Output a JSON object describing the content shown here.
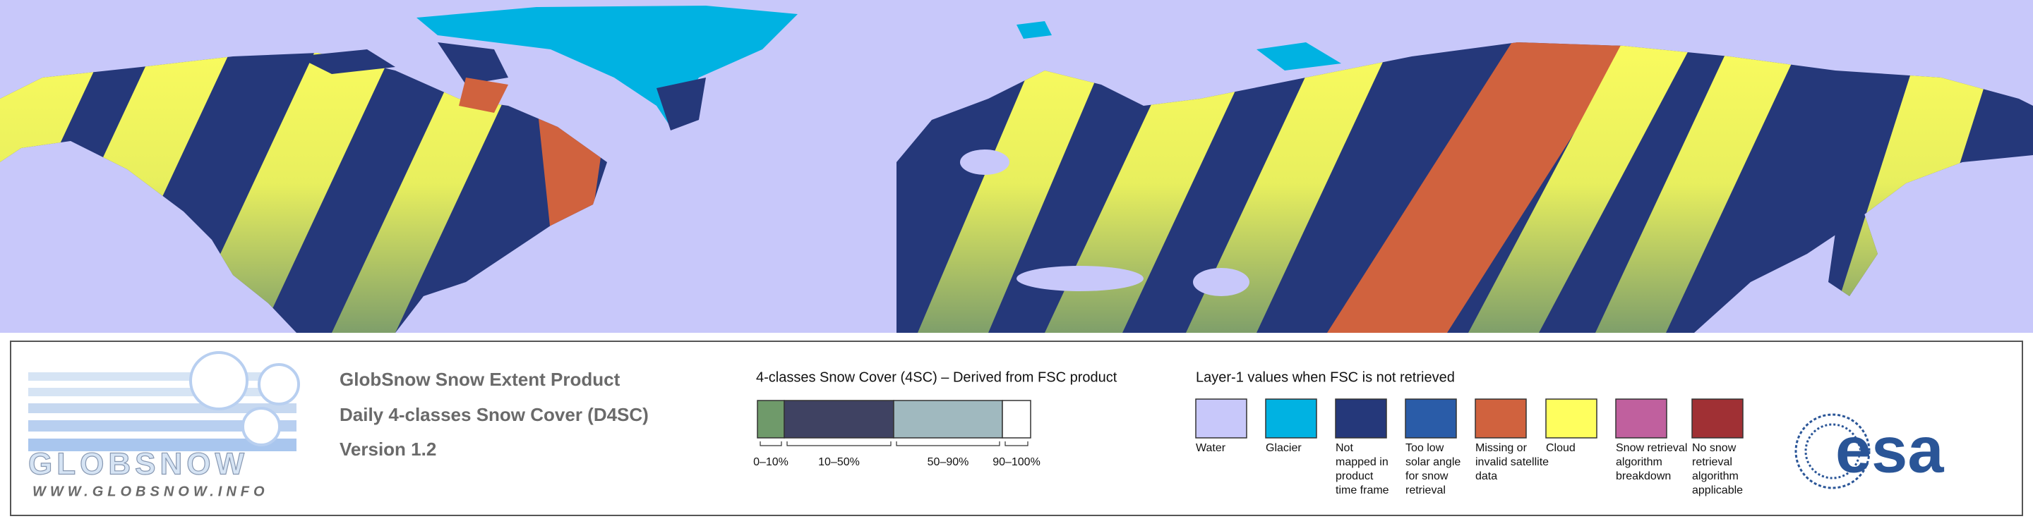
{
  "logo": {
    "name": "GLOBSNOW",
    "url": "WWW.GLOBSNOW.INFO"
  },
  "header": {
    "lines": [
      "GlobSnow Snow Extent Product",
      "Daily 4-classes Snow Cover (D4SC)",
      "Version 1.2"
    ]
  },
  "snow_cover_legend": {
    "title": "4-classes Snow Cover (4SC) – Derived from FSC product",
    "classes": [
      {
        "label": "0–10%",
        "color": "#6f9a6a"
      },
      {
        "label": "10–50%",
        "color": "#3f4262"
      },
      {
        "label": "50–90%",
        "color": "#a0b9bf"
      },
      {
        "label": "90–100%",
        "color": "#ffffff"
      }
    ]
  },
  "layer1_legend": {
    "title": "Layer-1 values when FSC is not retrieved",
    "items": [
      {
        "label_lines": [
          "Water"
        ],
        "color": "#c8c8fa"
      },
      {
        "label_lines": [
          "Glacier"
        ],
        "color": "#00b2e2"
      },
      {
        "label_lines": [
          "Not",
          "mapped in",
          "product",
          "time frame"
        ],
        "color": "#25387a"
      },
      {
        "label_lines": [
          "Too low",
          "solar angle",
          "for snow",
          "retrieval"
        ],
        "color": "#2a5ca8"
      },
      {
        "label_lines": [
          "Missing or",
          "invalid satellite",
          "data"
        ],
        "color": "#d0623e"
      },
      {
        "label_lines": [
          "Cloud"
        ],
        "color": "#ffff5e"
      },
      {
        "label_lines": [
          "Snow retrieval",
          "algorithm",
          "breakdown"
        ],
        "color": "#c0609e"
      },
      {
        "label_lines": [
          "No snow",
          "retrieval",
          "algorithm",
          "applicable"
        ],
        "color": "#a03034"
      }
    ]
  },
  "esa_logo": {
    "text": "esa"
  }
}
